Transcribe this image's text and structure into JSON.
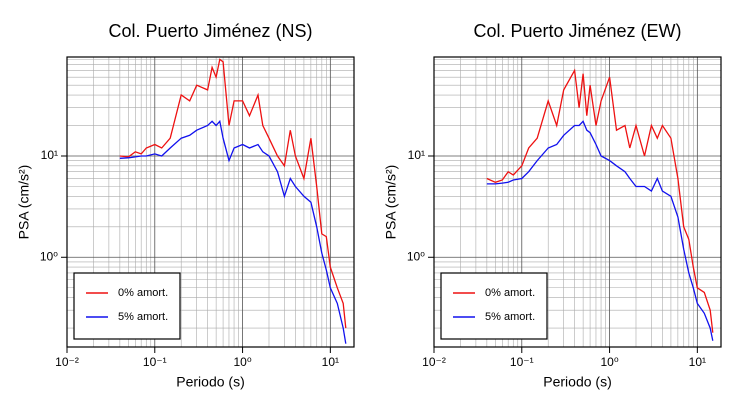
{
  "chart_data": [
    {
      "type": "line",
      "title": "Col. Puerto Jiménez (NS)",
      "x_label": "Periodo (s)",
      "y_label": "PSA (cm/s²)",
      "x": [
        0.04,
        0.05,
        0.06,
        0.07,
        0.08,
        0.1,
        0.12,
        0.15,
        0.2,
        0.25,
        0.3,
        0.4,
        0.45,
        0.5,
        0.55,
        0.6,
        0.7,
        0.8,
        1,
        1.2,
        1.5,
        1.7,
        2,
        2.5,
        3,
        3.5,
        4,
        5,
        6,
        7,
        8,
        9,
        10,
        12,
        14,
        15
      ],
      "series": [
        {
          "name": "0% amort.",
          "color": "#ee1111",
          "values": [
            10,
            9.8,
            11,
            10.5,
            12,
            13,
            12,
            15,
            40,
            35,
            50,
            45,
            75,
            60,
            90,
            85,
            20,
            35,
            35,
            25,
            40,
            20,
            15,
            10,
            8,
            18,
            10,
            6,
            15,
            5,
            1.7,
            1.6,
            0.8,
            0.5,
            0.35,
            0.2
          ]
        },
        {
          "name": "5% amort.",
          "color": "#1111ee",
          "values": [
            9.5,
            9.6,
            9.8,
            10,
            10,
            10.5,
            10,
            12,
            15,
            16,
            18,
            20,
            22,
            20,
            22,
            15,
            9,
            12,
            13,
            12,
            13,
            11,
            10,
            7,
            4,
            6,
            5,
            4,
            3.5,
            2,
            1.1,
            0.75,
            0.5,
            0.35,
            0.2,
            0.14
          ]
        }
      ],
      "xlim": [
        0.01,
        18.6
      ],
      "ylim": [
        0.13,
        95
      ],
      "log_x": true,
      "log_y": true,
      "grid": true,
      "legend": "lower left",
      "xticks": [
        {
          "value": 0.01,
          "label": "10⁻²"
        },
        {
          "value": 0.1,
          "label": "10⁻¹"
        },
        {
          "value": 1,
          "label": "10⁰"
        },
        {
          "value": 10,
          "label": "10¹"
        }
      ],
      "yticks": [
        {
          "value": 1,
          "label": "10⁰"
        },
        {
          "value": 10,
          "label": "10¹"
        }
      ]
    },
    {
      "type": "line",
      "title": "Col. Puerto Jiménez (EW)",
      "x_label": "Periodo (s)",
      "y_label": "PSA (cm/s²)",
      "x": [
        0.04,
        0.05,
        0.06,
        0.07,
        0.08,
        0.1,
        0.12,
        0.15,
        0.2,
        0.25,
        0.3,
        0.4,
        0.45,
        0.5,
        0.55,
        0.6,
        0.7,
        0.8,
        1,
        1.2,
        1.5,
        1.7,
        2,
        2.5,
        3,
        3.5,
        4,
        5,
        6,
        7,
        8,
        9,
        10,
        12,
        14,
        15
      ],
      "series": [
        {
          "name": "0% amort.",
          "color": "#ee1111",
          "values": [
            6,
            5.5,
            5.8,
            7,
            6.5,
            8,
            12,
            15,
            35,
            20,
            45,
            70,
            30,
            65,
            25,
            50,
            20,
            35,
            60,
            18,
            20,
            12,
            20,
            10,
            20,
            15,
            20,
            15,
            6,
            2,
            1.5,
            0.8,
            0.5,
            0.45,
            0.3,
            0.18
          ]
        },
        {
          "name": "5% amort.",
          "color": "#1111ee",
          "values": [
            5.3,
            5.3,
            5.4,
            5.5,
            5.8,
            6,
            7,
            9,
            12,
            13,
            16,
            20,
            20,
            22,
            18,
            17,
            13,
            10,
            9,
            8,
            7,
            6,
            5,
            5,
            4.5,
            6,
            4.5,
            4,
            2.5,
            1.2,
            0.7,
            0.5,
            0.35,
            0.28,
            0.2,
            0.15
          ]
        }
      ],
      "xlim": [
        0.01,
        18.6
      ],
      "ylim": [
        0.13,
        95
      ],
      "log_x": true,
      "log_y": true,
      "grid": true,
      "legend": "lower left",
      "xticks": [
        {
          "value": 0.01,
          "label": "10⁻²"
        },
        {
          "value": 0.1,
          "label": "10⁻¹"
        },
        {
          "value": 1,
          "label": "10⁰"
        },
        {
          "value": 10,
          "label": "10¹"
        }
      ],
      "yticks": [
        {
          "value": 1,
          "label": "10⁰"
        },
        {
          "value": 10,
          "label": "10¹"
        }
      ]
    }
  ]
}
